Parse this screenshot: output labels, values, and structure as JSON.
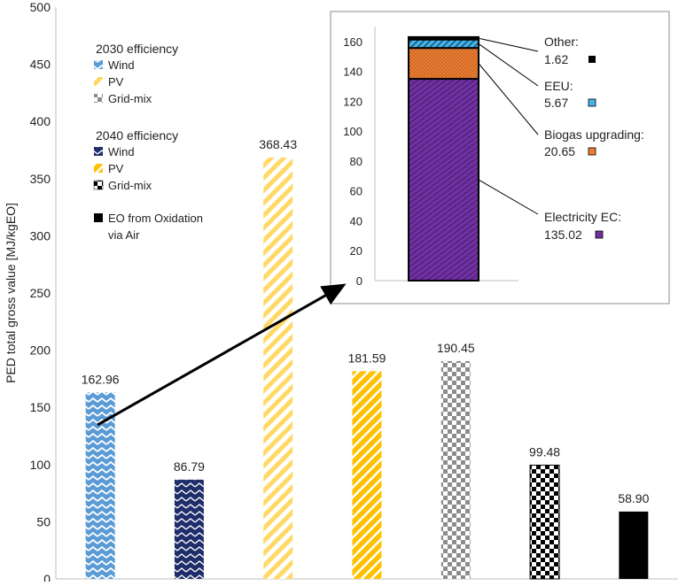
{
  "chart_data": [
    {
      "type": "bar",
      "ylabel": "PED total gross value [MJ/kgEO]",
      "ylim": [
        0,
        500
      ],
      "yticks": [
        0,
        50,
        100,
        150,
        200,
        250,
        300,
        350,
        400,
        450,
        500
      ],
      "categories": [
        "2030 Wind",
        "2040 Wind",
        "2030 PV",
        "2040 PV",
        "2030 Grid-mix",
        "2040 Grid-mix",
        "EO from Oxidation via Air"
      ],
      "values": [
        162.96,
        86.79,
        368.43,
        181.59,
        190.45,
        99.48,
        58.9
      ],
      "value_labels": [
        "162.96",
        "86.79",
        "368.43",
        "181.59",
        "190.45",
        "99.48",
        "58.90"
      ],
      "patterns": [
        "wind2030",
        "wind2040",
        "pv2030",
        "pv2040",
        "grid2030",
        "grid2040",
        "solid"
      ],
      "legend": {
        "group1_title": "2030 efficiency",
        "group1": [
          {
            "label": "Wind",
            "pattern": "wind2030"
          },
          {
            "label": "PV",
            "pattern": "pv2030"
          },
          {
            "label": "Grid-mix",
            "pattern": "grid2030"
          }
        ],
        "group2_title": "2040 efficiency",
        "group2": [
          {
            "label": "Wind",
            "pattern": "wind2040"
          },
          {
            "label": "PV",
            "pattern": "pv2040"
          },
          {
            "label": "Grid-mix",
            "pattern": "grid2040"
          }
        ],
        "extra_label": "EO from Oxidation",
        "extra_label_line2": "via Air"
      },
      "annotation": "arrow from 2030 Wind bar to inset"
    },
    {
      "type": "stacked-bar",
      "ylim": [
        0,
        170
      ],
      "yticks": [
        0,
        20,
        40,
        60,
        80,
        100,
        120,
        140,
        160
      ],
      "segments": [
        {
          "name": "Electricity EC",
          "value": 135.02,
          "value_label": "135.02",
          "color": "#7030a0"
        },
        {
          "name": "Biogas upgrading",
          "value": 20.65,
          "value_label": "20.65",
          "color": "#ed7d31"
        },
        {
          "name": "EEU",
          "value": 5.67,
          "value_label": "5.67",
          "color": "#41b6e6"
        },
        {
          "name": "Other",
          "value": 1.62,
          "value_label": "1.62",
          "color": "#000000"
        }
      ],
      "labels": [
        "Electricity EC:",
        "Biogas upgrading:",
        "EEU:",
        "Other:"
      ]
    }
  ]
}
